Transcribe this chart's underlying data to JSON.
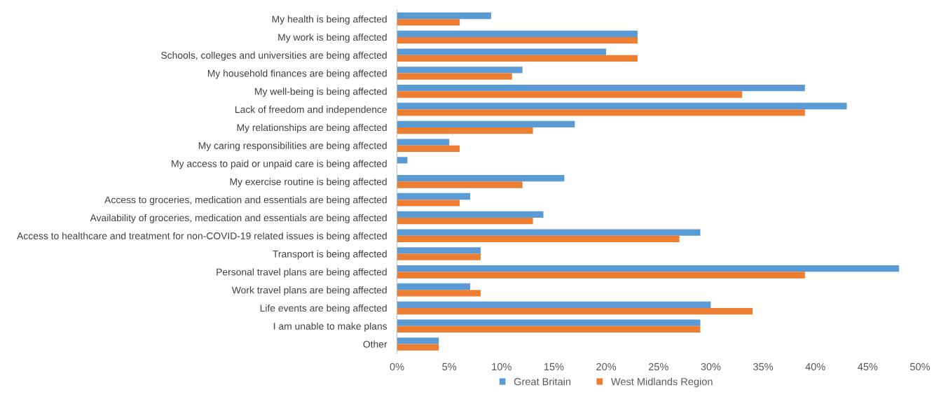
{
  "chart_data": {
    "type": "bar",
    "orientation": "horizontal",
    "categories": [
      "My health is being affected",
      "My work is being affected",
      "Schools, colleges and universities are being affected",
      "My household finances are being affected",
      "My well-being is being affected",
      "Lack of freedom and independence",
      "My relationships are being affected",
      "My caring responsibilities are being affected",
      "My access to paid or unpaid care is being affected",
      "My exercise routine is being affected",
      "Access to groceries, medication and essentials are being affected",
      "Availability of groceries, medication and essentials are being affected",
      "Access to healthcare and treatment for non-COVID-19 related issues is being affected",
      "Transport is being affected",
      "Personal travel plans are being affected",
      "Work travel plans are being affected",
      "Life events are being affected",
      "I am unable to make plans",
      "Other"
    ],
    "series": [
      {
        "name": "Great Britain",
        "color": "#5b9bd5",
        "values": [
          9,
          23,
          20,
          12,
          39,
          43,
          17,
          5,
          1,
          16,
          7,
          14,
          29,
          8,
          48,
          7,
          30,
          29,
          4
        ]
      },
      {
        "name": "West Midlands Region",
        "color": "#ed7d31",
        "values": [
          6,
          23,
          23,
          11,
          33,
          39,
          13,
          6,
          0,
          12,
          6,
          13,
          27,
          8,
          39,
          8,
          34,
          29,
          4
        ]
      }
    ],
    "xlim": [
      0,
      50
    ],
    "xticks": [
      {
        "value": 0,
        "label": "0%"
      },
      {
        "value": 5,
        "label": "5%"
      },
      {
        "value": 10,
        "label": "10%"
      },
      {
        "value": 15,
        "label": "15%"
      },
      {
        "value": 20,
        "label": "20%"
      },
      {
        "value": 25,
        "label": "25%"
      },
      {
        "value": 30,
        "label": "30%"
      },
      {
        "value": 35,
        "label": "35%"
      },
      {
        "value": 40,
        "label": "40%"
      },
      {
        "value": 45,
        "label": "45%"
      },
      {
        "value": 50,
        "label": "50%"
      }
    ],
    "grid": false,
    "legend": "bottom"
  }
}
